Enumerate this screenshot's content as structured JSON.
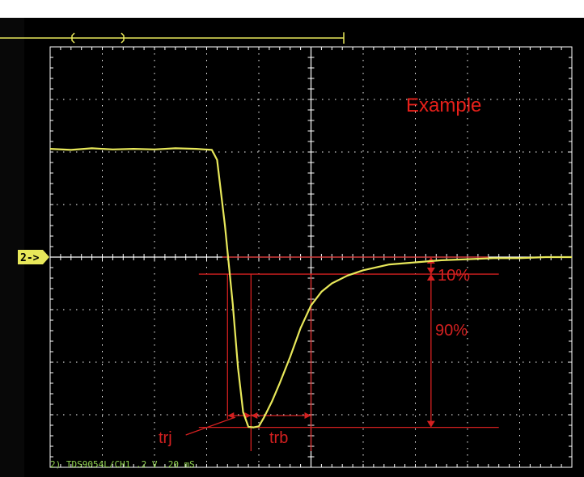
{
  "chart_data": {
    "type": "line",
    "title": "",
    "xlabel": "",
    "ylabel": "",
    "grid": true,
    "xlim": [
      0,
      10
    ],
    "ylim": [
      -4,
      4
    ],
    "series": [
      {
        "x": [
          0,
          0.4,
          0.8,
          1.2,
          1.6,
          2.0,
          2.4,
          2.8,
          3.1,
          3.2,
          3.35,
          3.5,
          3.6,
          3.7,
          3.8,
          3.9,
          4.0,
          4.1,
          4.25,
          4.4,
          4.6,
          4.8,
          5.0,
          5.2,
          5.4,
          5.7,
          6.0,
          6.5,
          7.0,
          7.5,
          8.0,
          8.5,
          9.0,
          9.5,
          10.0
        ],
        "y": [
          2.06,
          2.04,
          2.07,
          2.05,
          2.06,
          2.05,
          2.07,
          2.06,
          2.04,
          1.85,
          0.6,
          -0.9,
          -2.1,
          -2.95,
          -3.23,
          -3.24,
          -3.22,
          -3.05,
          -2.75,
          -2.4,
          -1.9,
          -1.35,
          -0.92,
          -0.66,
          -0.5,
          -0.35,
          -0.25,
          -0.14,
          -0.1,
          -0.06,
          -0.04,
          -0.02,
          -0.02,
          0.0,
          0.0
        ]
      }
    ],
    "annotations": {
      "example": "Example",
      "pct_10": "10%",
      "pct_90": "90%",
      "trj": "trj",
      "trb": "trb"
    },
    "channel_marker": "2->",
    "status_readout": "2) TDS9054L/CH1 .2 V .20 mS",
    "colors": {
      "trace": "#e8e85a",
      "grid": "#ffffff",
      "annotation": "#d42020",
      "example": "#e8201a",
      "status": "#8fd14f",
      "background": "#000000"
    }
  }
}
